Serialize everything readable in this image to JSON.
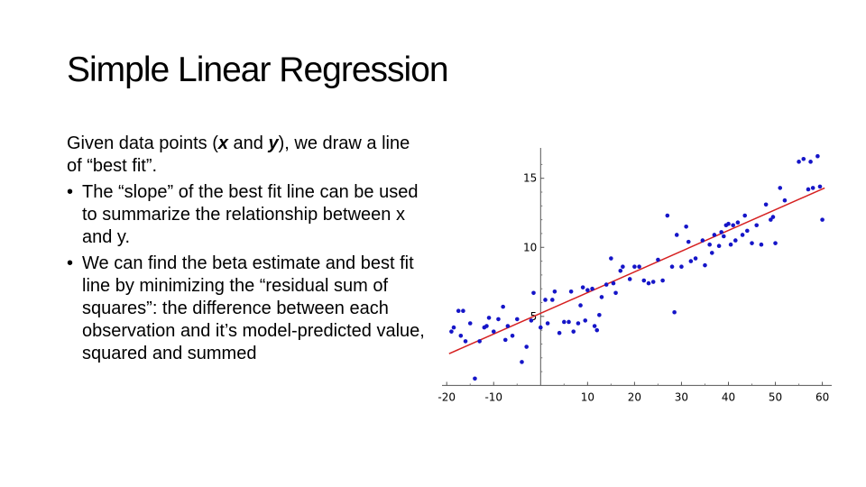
{
  "slide": {
    "title": "Simple Linear Regression",
    "intro_line1": "Given data points (",
    "intro_x": "x",
    "intro_and": " and ",
    "intro_y": "y",
    "intro_line2": "), we draw a line of “best fit”.",
    "bullets": [
      "The “slope” of the best fit line can be used to summarize the relationship between x and y.",
      "We can find the beta estimate and best fit line by minimizing the “residual sum of squares”: the difference between each observation and it’s model-predicted value, squared and summed"
    ],
    "bullet_glyph": "•"
  },
  "chart_data": {
    "type": "scatter",
    "x_ticks": [
      -20,
      -10,
      10,
      20,
      30,
      40,
      50,
      60
    ],
    "y_ticks": [
      5,
      10,
      15
    ],
    "xlim": [
      -21,
      62
    ],
    "ylim": [
      -0.3,
      17.2
    ],
    "point_color": "#1515c8",
    "line_color": "#d62020",
    "fit_line": {
      "x": [
        -19.5,
        60.5
      ],
      "y": [
        2.3,
        14.3
      ]
    },
    "points": [
      [
        -19,
        3.9
      ],
      [
        -18.5,
        4.2
      ],
      [
        -17.5,
        5.4
      ],
      [
        -17,
        3.6
      ],
      [
        -16.5,
        5.4
      ],
      [
        -16,
        3.2
      ],
      [
        -15,
        4.5
      ],
      [
        -14,
        0.5
      ],
      [
        -13,
        3.2
      ],
      [
        -12,
        4.2
      ],
      [
        -11.5,
        4.3
      ],
      [
        -11,
        4.9
      ],
      [
        -10,
        3.9
      ],
      [
        -9,
        4.8
      ],
      [
        -8,
        5.7
      ],
      [
        -7.5,
        3.3
      ],
      [
        -7,
        4.3
      ],
      [
        -6,
        3.6
      ],
      [
        -5,
        4.8
      ],
      [
        -4,
        1.7
      ],
      [
        -3,
        2.8
      ],
      [
        -2,
        4.7
      ],
      [
        -1.5,
        6.7
      ],
      [
        0,
        4.2
      ],
      [
        1,
        6.2
      ],
      [
        1.5,
        4.5
      ],
      [
        2.5,
        6.2
      ],
      [
        3,
        6.8
      ],
      [
        4,
        3.8
      ],
      [
        5,
        4.6
      ],
      [
        6,
        4.6
      ],
      [
        6.5,
        6.8
      ],
      [
        7,
        3.9
      ],
      [
        8,
        4.5
      ],
      [
        8.5,
        5.8
      ],
      [
        9,
        7.1
      ],
      [
        9.5,
        4.7
      ],
      [
        10,
        6.9
      ],
      [
        11,
        7.0
      ],
      [
        11.5,
        4.3
      ],
      [
        12,
        4.0
      ],
      [
        12.5,
        5.1
      ],
      [
        13,
        6.4
      ],
      [
        14,
        7.3
      ],
      [
        15,
        9.2
      ],
      [
        15.5,
        7.4
      ],
      [
        16,
        6.7
      ],
      [
        17,
        8.3
      ],
      [
        17.5,
        8.6
      ],
      [
        19,
        7.7
      ],
      [
        20,
        8.6
      ],
      [
        21,
        8.6
      ],
      [
        22,
        7.6
      ],
      [
        23,
        7.4
      ],
      [
        24,
        7.5
      ],
      [
        25,
        9.1
      ],
      [
        26,
        7.6
      ],
      [
        27,
        12.3
      ],
      [
        28,
        8.6
      ],
      [
        28.5,
        5.3
      ],
      [
        29,
        10.9
      ],
      [
        30,
        8.6
      ],
      [
        31,
        11.5
      ],
      [
        31.5,
        10.4
      ],
      [
        32,
        9.0
      ],
      [
        33,
        9.2
      ],
      [
        34.5,
        10.5
      ],
      [
        35,
        8.7
      ],
      [
        36,
        10.2
      ],
      [
        36.5,
        9.6
      ],
      [
        37,
        10.9
      ],
      [
        38,
        10.1
      ],
      [
        38.5,
        11.1
      ],
      [
        39,
        10.8
      ],
      [
        39.5,
        11.6
      ],
      [
        40,
        11.7
      ],
      [
        40.5,
        10.2
      ],
      [
        41,
        11.6
      ],
      [
        41.5,
        10.5
      ],
      [
        42,
        11.8
      ],
      [
        43,
        10.9
      ],
      [
        43.5,
        12.3
      ],
      [
        44,
        11.2
      ],
      [
        45,
        10.3
      ],
      [
        46,
        11.6
      ],
      [
        47,
        10.2
      ],
      [
        48,
        13.1
      ],
      [
        49,
        12.0
      ],
      [
        49.5,
        12.2
      ],
      [
        50,
        10.3
      ],
      [
        51,
        14.3
      ],
      [
        52,
        13.4
      ],
      [
        55,
        16.2
      ],
      [
        56,
        16.4
      ],
      [
        57,
        14.2
      ],
      [
        57.5,
        16.2
      ],
      [
        58,
        14.3
      ],
      [
        59,
        16.6
      ],
      [
        59.5,
        14.4
      ],
      [
        60,
        12.0
      ]
    ]
  }
}
